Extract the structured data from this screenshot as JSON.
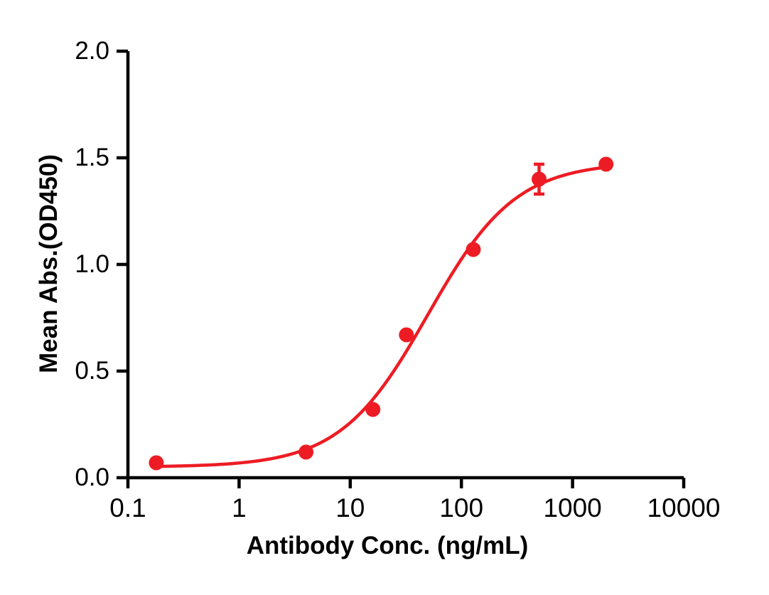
{
  "chart_data": {
    "type": "scatter",
    "title": "",
    "xlabel": "Antibody Conc. (ng/mL)",
    "ylabel": "Mean Abs.(OD450)",
    "x_scale": "log10",
    "xlim": [
      0.1,
      10000
    ],
    "ylim": [
      0.0,
      2.0
    ],
    "x_ticks": [
      0.1,
      1,
      10,
      100,
      1000,
      10000
    ],
    "x_tick_labels": [
      "0.1",
      "1",
      "10",
      "100",
      "1000",
      "10000"
    ],
    "y_ticks": [
      0.0,
      0.5,
      1.0,
      1.5,
      2.0
    ],
    "y_tick_labels": [
      "0.0",
      "0.5",
      "1.0",
      "1.5",
      "2.0"
    ],
    "grid": false,
    "legend": "none",
    "axis_color": "#000000",
    "background_color": "#FFFFFF",
    "series": [
      {
        "name": "Mean Abs.(OD450)",
        "marker": "circle",
        "color": "#ED1C24",
        "x": [
          0.18,
          4,
          16,
          32,
          128,
          500,
          2000
        ],
        "y": [
          0.07,
          0.12,
          0.32,
          0.67,
          1.07,
          1.4,
          1.47
        ],
        "error_y": [
          0,
          0,
          0,
          0,
          0,
          0.07,
          0
        ]
      }
    ],
    "fit_curve": {
      "model": "4PL",
      "bottom": 0.05,
      "top": 1.48,
      "ec50": 50,
      "hill": 1.1,
      "x_start": 0.18,
      "x_end": 2000,
      "color": "#ED1C24"
    }
  }
}
